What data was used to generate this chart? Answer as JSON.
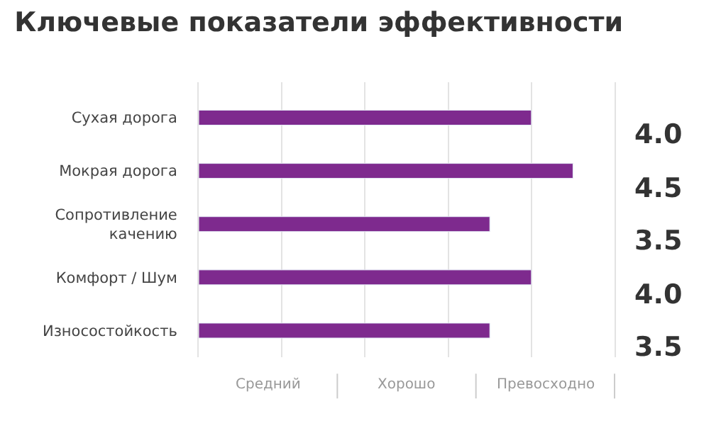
{
  "chart_data": {
    "type": "bar",
    "orientation": "horizontal",
    "title": "Ключевые показатели эффективности",
    "categories": [
      "Сухая дорога",
      "Мокрая дорога",
      "Сопротивление качению",
      "Комфорт / Шум",
      "Износостойкость"
    ],
    "values": [
      4.0,
      4.5,
      3.5,
      4.0,
      3.5
    ],
    "value_labels": [
      "4.0",
      "4.5",
      "3.5",
      "4.0",
      "3.5"
    ],
    "color": "#7e2a8e",
    "xlim": [
      0,
      5
    ],
    "annotations": [
      "Средний",
      "Хорошо",
      "Превосходно"
    ],
    "grid": "x"
  }
}
